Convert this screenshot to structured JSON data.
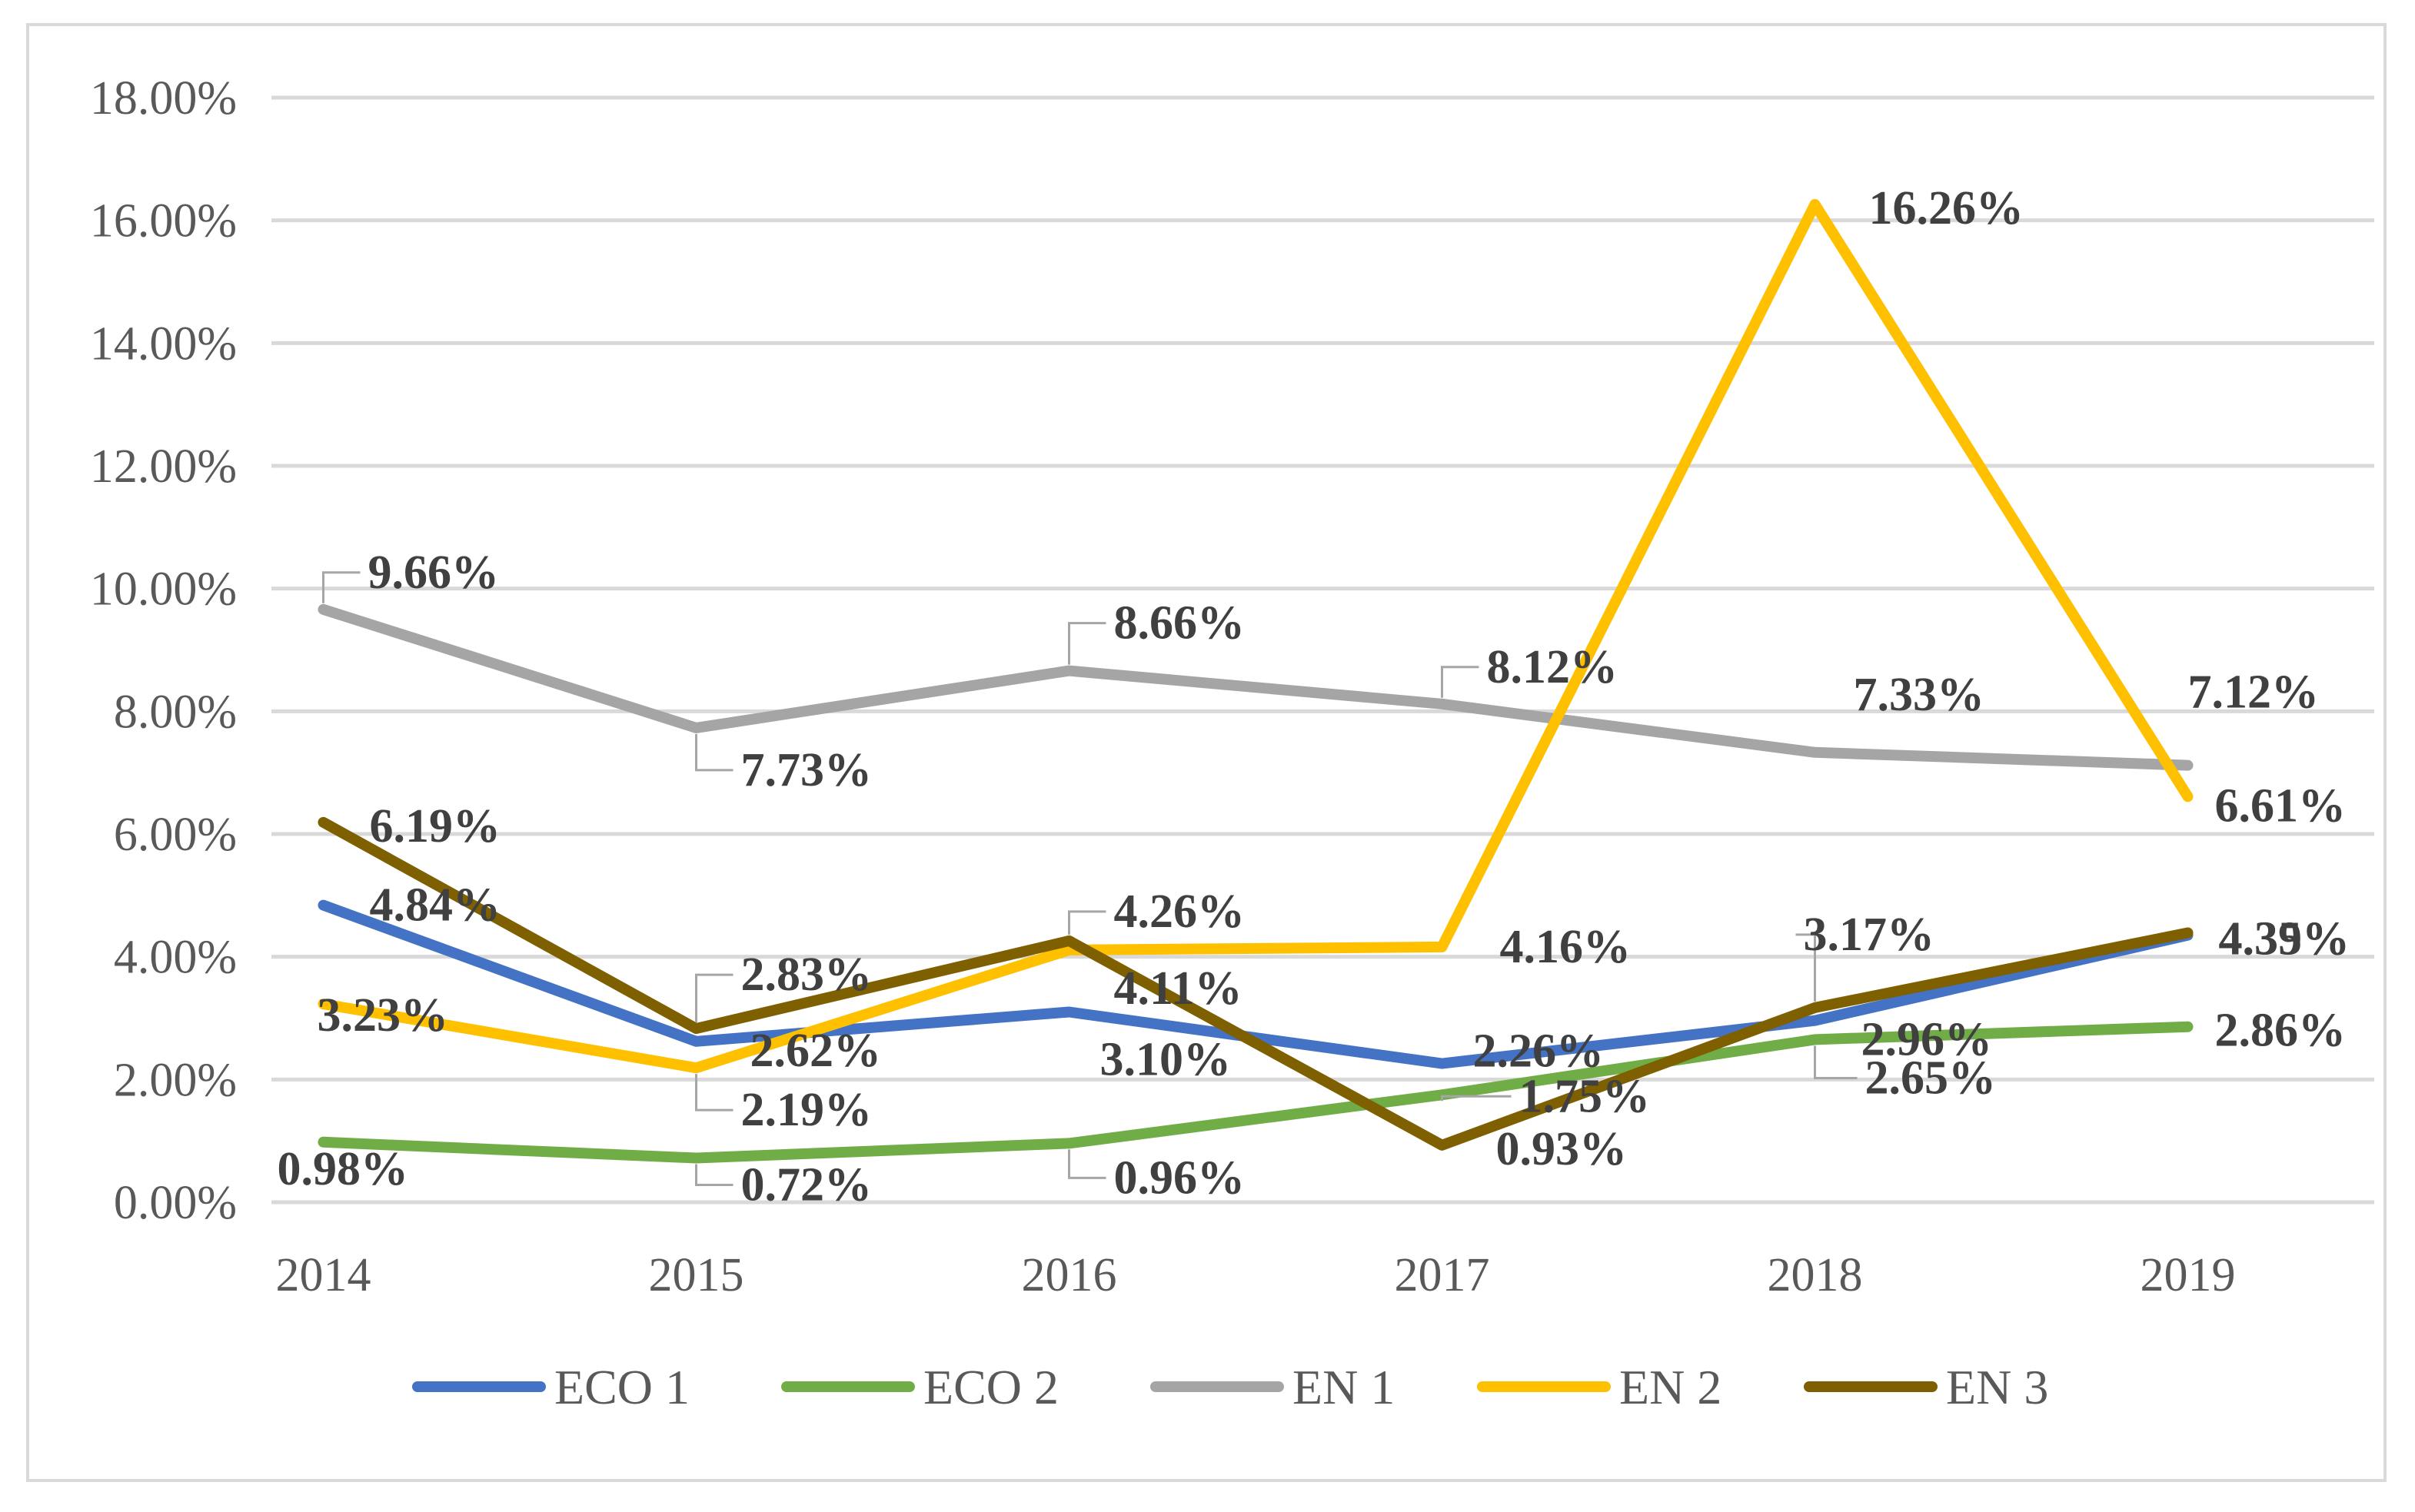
{
  "chart_data": {
    "type": "line",
    "title": "",
    "xlabel": "",
    "ylabel": "",
    "categories": [
      "2014",
      "2015",
      "2016",
      "2017",
      "2018",
      "2019"
    ],
    "ylim": [
      0,
      18
    ],
    "yticks": [
      "0.00%",
      "2.00%",
      "4.00%",
      "6.00%",
      "8.00%",
      "10.00%",
      "12.00%",
      "14.00%",
      "16.00%",
      "18.00%"
    ],
    "grid": true,
    "legend_position": "bottom",
    "series": [
      {
        "name": "ECO 1",
        "color": "#4472c4",
        "values": [
          4.84,
          2.62,
          3.1,
          2.26,
          2.96,
          4.35
        ],
        "labels": [
          "4.84%",
          "2.62%",
          "3.10%",
          "2.26%",
          "2.96%",
          "4.35%"
        ]
      },
      {
        "name": "ECO 2",
        "color": "#70ad47",
        "values": [
          0.98,
          0.72,
          0.96,
          1.75,
          2.65,
          2.86
        ],
        "labels": [
          "0.98%",
          "0.72%",
          "0.96%",
          "1.75%",
          "2.65%",
          "2.86%"
        ]
      },
      {
        "name": "EN 1",
        "color": "#a5a5a5",
        "values": [
          9.66,
          7.73,
          8.66,
          8.12,
          7.33,
          7.12
        ],
        "labels": [
          "9.66%",
          "7.73%",
          "8.66%",
          "8.12%",
          "7.33%",
          "7.12%"
        ]
      },
      {
        "name": "EN 2",
        "color": "#ffc000",
        "values": [
          3.23,
          2.19,
          4.11,
          4.16,
          16.26,
          6.61
        ],
        "labels": [
          "3.23%",
          "2.19%",
          "4.11%",
          "4.16%",
          "16.26%",
          "6.61%"
        ]
      },
      {
        "name": "EN 3",
        "color": "#7f6000",
        "values": [
          6.19,
          2.83,
          4.26,
          0.93,
          3.17,
          4.39
        ],
        "labels": [
          "6.19%",
          "2.83%",
          "4.26%",
          "0.93%",
          "3.17%",
          "4.39%"
        ]
      }
    ]
  }
}
